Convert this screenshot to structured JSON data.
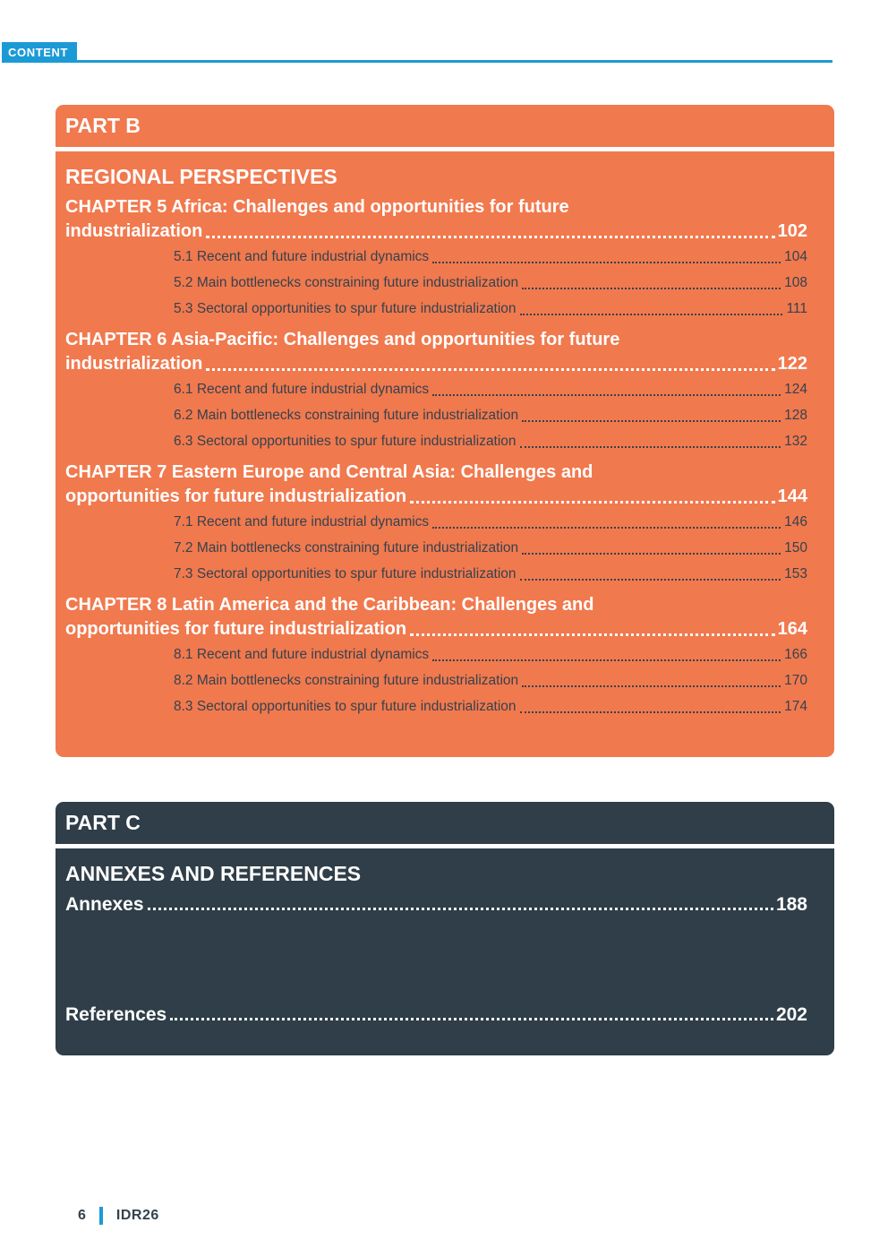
{
  "page": {
    "header_label": "CONTENT",
    "footer": {
      "page_number": "6",
      "report_label": "IDR26"
    },
    "colors": {
      "accent_blue": "#1C9AD6",
      "part_b_orange": "#F1794E",
      "part_c_slate": "#2F3E48",
      "ink_text": "#35424D"
    }
  },
  "part_b": {
    "part_label": "PART B",
    "section_title": "REGIONAL PERSPECTIVES",
    "chapters": [
      {
        "line1": "CHAPTER 5 Africa: Challenges and opportunities for future",
        "line2": "industrialization",
        "page": "102",
        "subsections": [
          {
            "label": "5.1 Recent and future industrial dynamics",
            "page": "104"
          },
          {
            "label": "5.2 Main bottlenecks constraining future industrialization",
            "page": "108"
          },
          {
            "label": "5.3 Sectoral opportunities to spur future industrialization",
            "page": "111"
          }
        ]
      },
      {
        "line1": "CHAPTER 6 Asia-Pacific: Challenges and opportunities for future",
        "line2": "industrialization",
        "page": "122",
        "subsections": [
          {
            "label": "6.1 Recent and future industrial dynamics",
            "page": "124"
          },
          {
            "label": "6.2 Main bottlenecks constraining future industrialization",
            "page": "128"
          },
          {
            "label": "6.3 Sectoral opportunities to spur future industrialization",
            "page": "132"
          }
        ]
      },
      {
        "line1": "CHAPTER 7 Eastern Europe and Central Asia: Challenges and",
        "line2": "opportunities for future industrialization",
        "page": "144",
        "subsections": [
          {
            "label": "7.1 Recent and future industrial dynamics",
            "page": "146"
          },
          {
            "label": "7.2 Main bottlenecks constraining future industrialization",
            "page": "150"
          },
          {
            "label": "7.3 Sectoral opportunities to spur future industrialization",
            "page": "153"
          }
        ]
      },
      {
        "line1": "CHAPTER 8 Latin America and the Caribbean: Challenges and",
        "line2": "opportunities for future industrialization",
        "page": "164",
        "subsections": [
          {
            "label": "8.1 Recent and future industrial dynamics",
            "page": "166"
          },
          {
            "label": "8.2 Main bottlenecks constraining future industrialization",
            "page": "170"
          },
          {
            "label": "8.3 Sectoral opportunities to spur future industrialization",
            "page": "174"
          }
        ]
      }
    ]
  },
  "part_c": {
    "part_label": "PART C",
    "section_title": "ANNEXES AND REFERENCES",
    "entries": [
      {
        "label": "Annexes",
        "page": "188"
      },
      {
        "label": "References",
        "page": "202"
      }
    ]
  }
}
